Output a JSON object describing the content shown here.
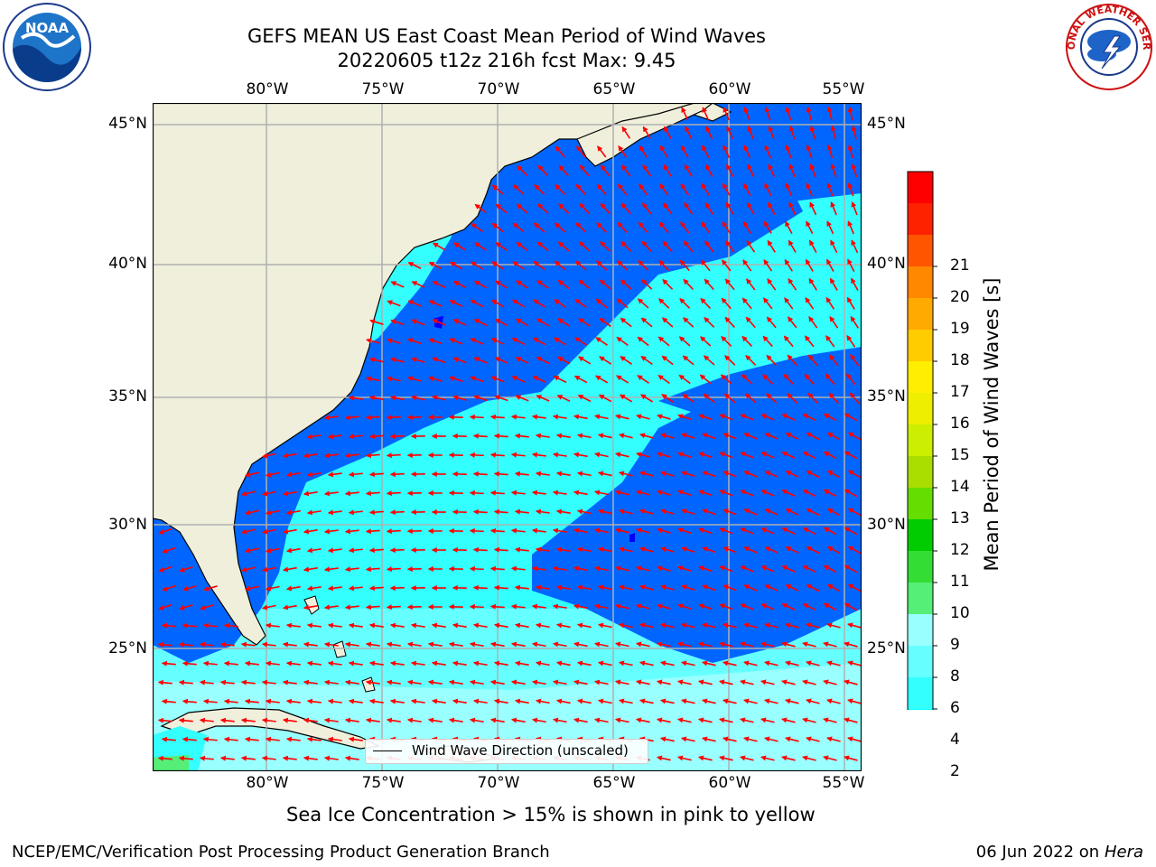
{
  "header": {
    "title_line1": "GEFS MEAN US East Coast Mean Period of Wind Waves",
    "title_line2": "20220605 t12z 216h fcst   Max: 9.45"
  },
  "logos": {
    "left": {
      "text": "NOAA",
      "icon": "noaa-logo"
    },
    "right": {
      "text": "NATIONAL WEATHER SERVICE",
      "icon": "nws-logo"
    }
  },
  "map": {
    "lon_labels": [
      "80°W",
      "75°W",
      "70°W",
      "65°W",
      "60°W",
      "55°W"
    ],
    "lat_labels": [
      "45°N",
      "40°N",
      "35°N",
      "30°N",
      "25°N"
    ],
    "extent": {
      "lon": [
        -85,
        -54.5
      ],
      "lat": [
        20.5,
        45.8
      ]
    },
    "land_color": "#efefdc",
    "grid_color": "#b0b0b0",
    "arrow_color": "#ff0000",
    "coastline_color": "#000000"
  },
  "legend": {
    "label": "Wind Wave Direction (unscaled)"
  },
  "colorbar": {
    "title": "Mean Period of Wind Waves [s]",
    "tick_labels": [
      "2",
      "4",
      "6",
      "8",
      "9",
      "10",
      "11",
      "12",
      "13",
      "14",
      "15",
      "16",
      "17",
      "18",
      "19",
      "20",
      "21"
    ],
    "colors": [
      "#0066ff",
      "#00ffff",
      "#33ffff",
      "#66ffff",
      "#99ffff",
      "#55ee77",
      "#33dd33",
      "#00cc00",
      "#66dd00",
      "#aadd00",
      "#ccee00",
      "#eeee00",
      "#ffee00",
      "#ffcc00",
      "#ffaa00",
      "#ff8800",
      "#ff5500",
      "#ff2200",
      "#ff0000"
    ],
    "under_color": "#0000ff"
  },
  "footer": {
    "caption": "Sea Ice Concentration > 15% is shown in pink to yellow",
    "left": "NCEP/EMC/Verification Post Processing Product Generation Branch",
    "right_prefix": "06 Jun 2022 on",
    "right_italic": "Hera"
  }
}
